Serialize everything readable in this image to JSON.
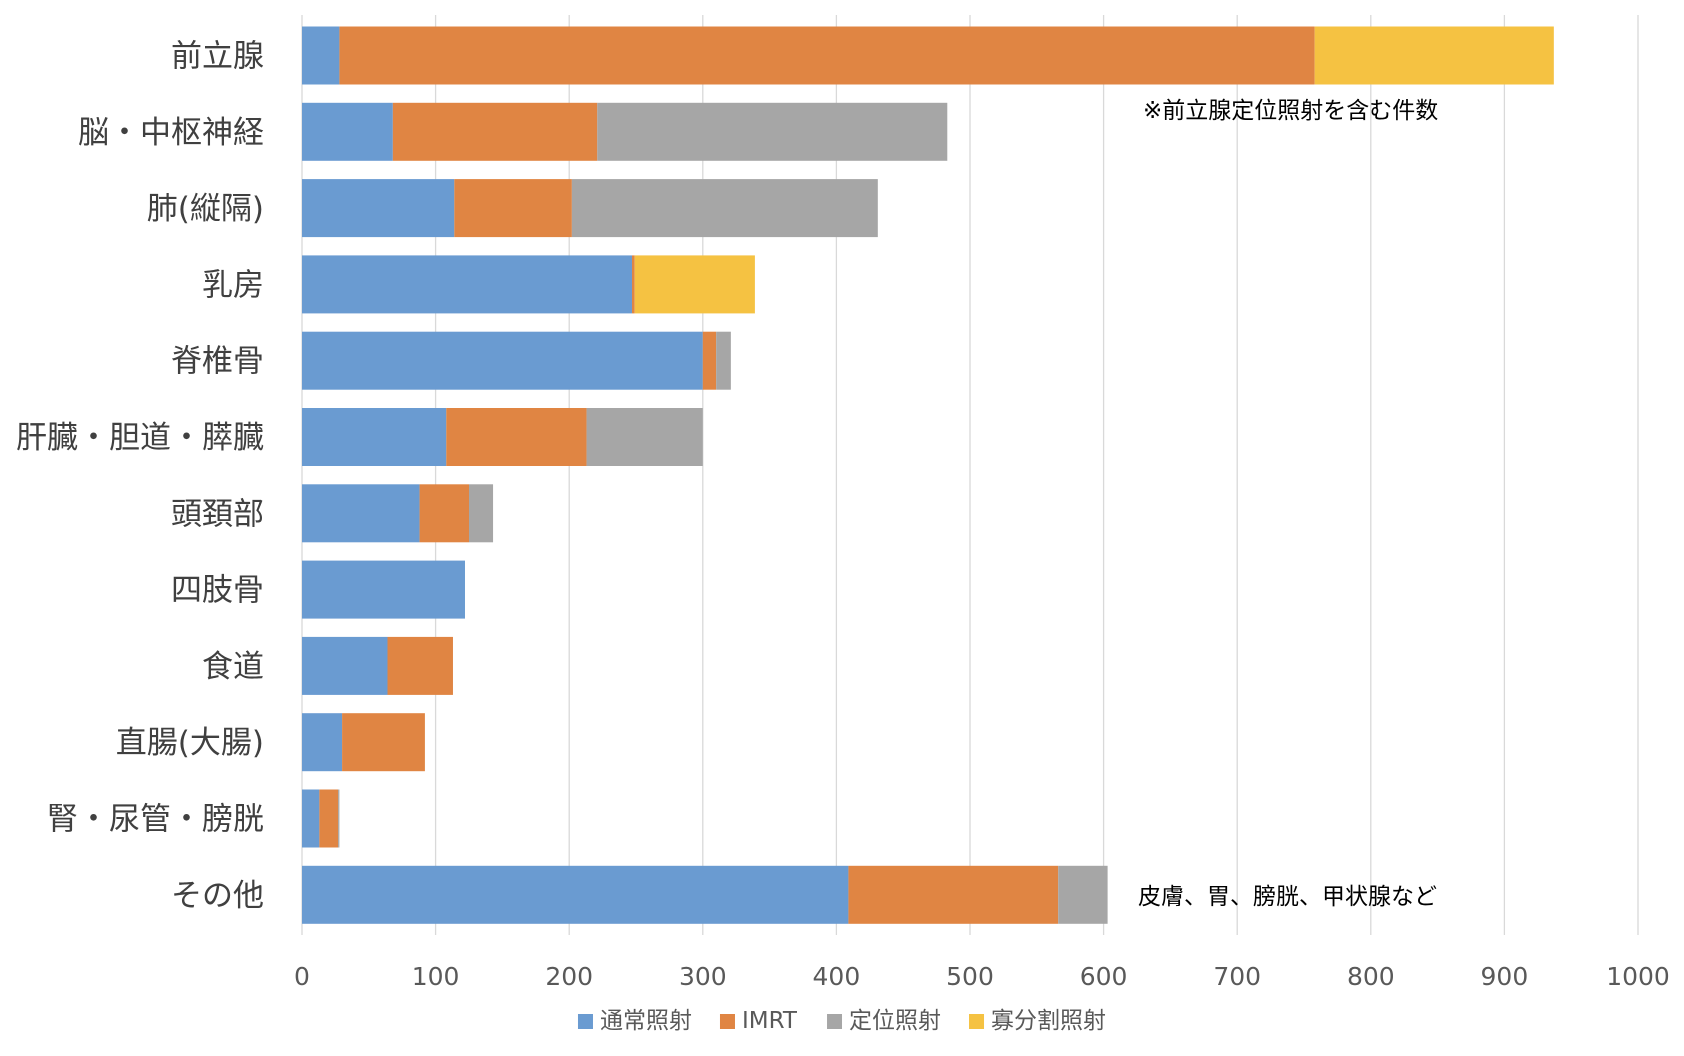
{
  "chart_data": {
    "type": "bar",
    "orientation": "horizontal",
    "stacked": true,
    "categories": [
      "前立腺",
      "脳・中枢神経",
      "肺(縦隔)",
      "乳房",
      "脊椎骨",
      "肝臓・胆道・膵臓",
      "頭頚部",
      "四肢骨",
      "食道",
      "直腸(大腸)",
      "腎・尿管・膀胱",
      "その他"
    ],
    "series": [
      {
        "name": "通常照射",
        "color": "#6a9bd1",
        "values": [
          28,
          68,
          114,
          247,
          300,
          108,
          88,
          122,
          64,
          30,
          13,
          409
        ]
      },
      {
        "name": "IMRT",
        "color": "#e08543",
        "values": [
          730,
          153,
          88,
          2,
          10,
          105,
          37,
          0,
          49,
          62,
          14,
          157
        ]
      },
      {
        "name": "定位照射",
        "color": "#a6a6a6",
        "values": [
          0,
          262,
          229,
          0,
          11,
          87,
          18,
          0,
          0,
          0,
          1,
          37
        ]
      },
      {
        "name": "寡分割照射",
        "color": "#f5c242",
        "values": [
          179,
          0,
          0,
          90,
          0,
          0,
          0,
          0,
          0,
          0,
          0,
          0
        ]
      }
    ],
    "xlim": [
      0,
      1000
    ],
    "xticks": [
      "0",
      "100",
      "200",
      "300",
      "400",
      "500",
      "600",
      "700",
      "800",
      "900",
      "1000"
    ],
    "grid": true,
    "legend_position": "bottom",
    "annotations": [
      {
        "text": "※前立腺定位照射を含む件数",
        "category_index": 0
      },
      {
        "text": "皮膚、胃、膀胱、甲状腺など",
        "category_index": 11
      }
    ]
  }
}
